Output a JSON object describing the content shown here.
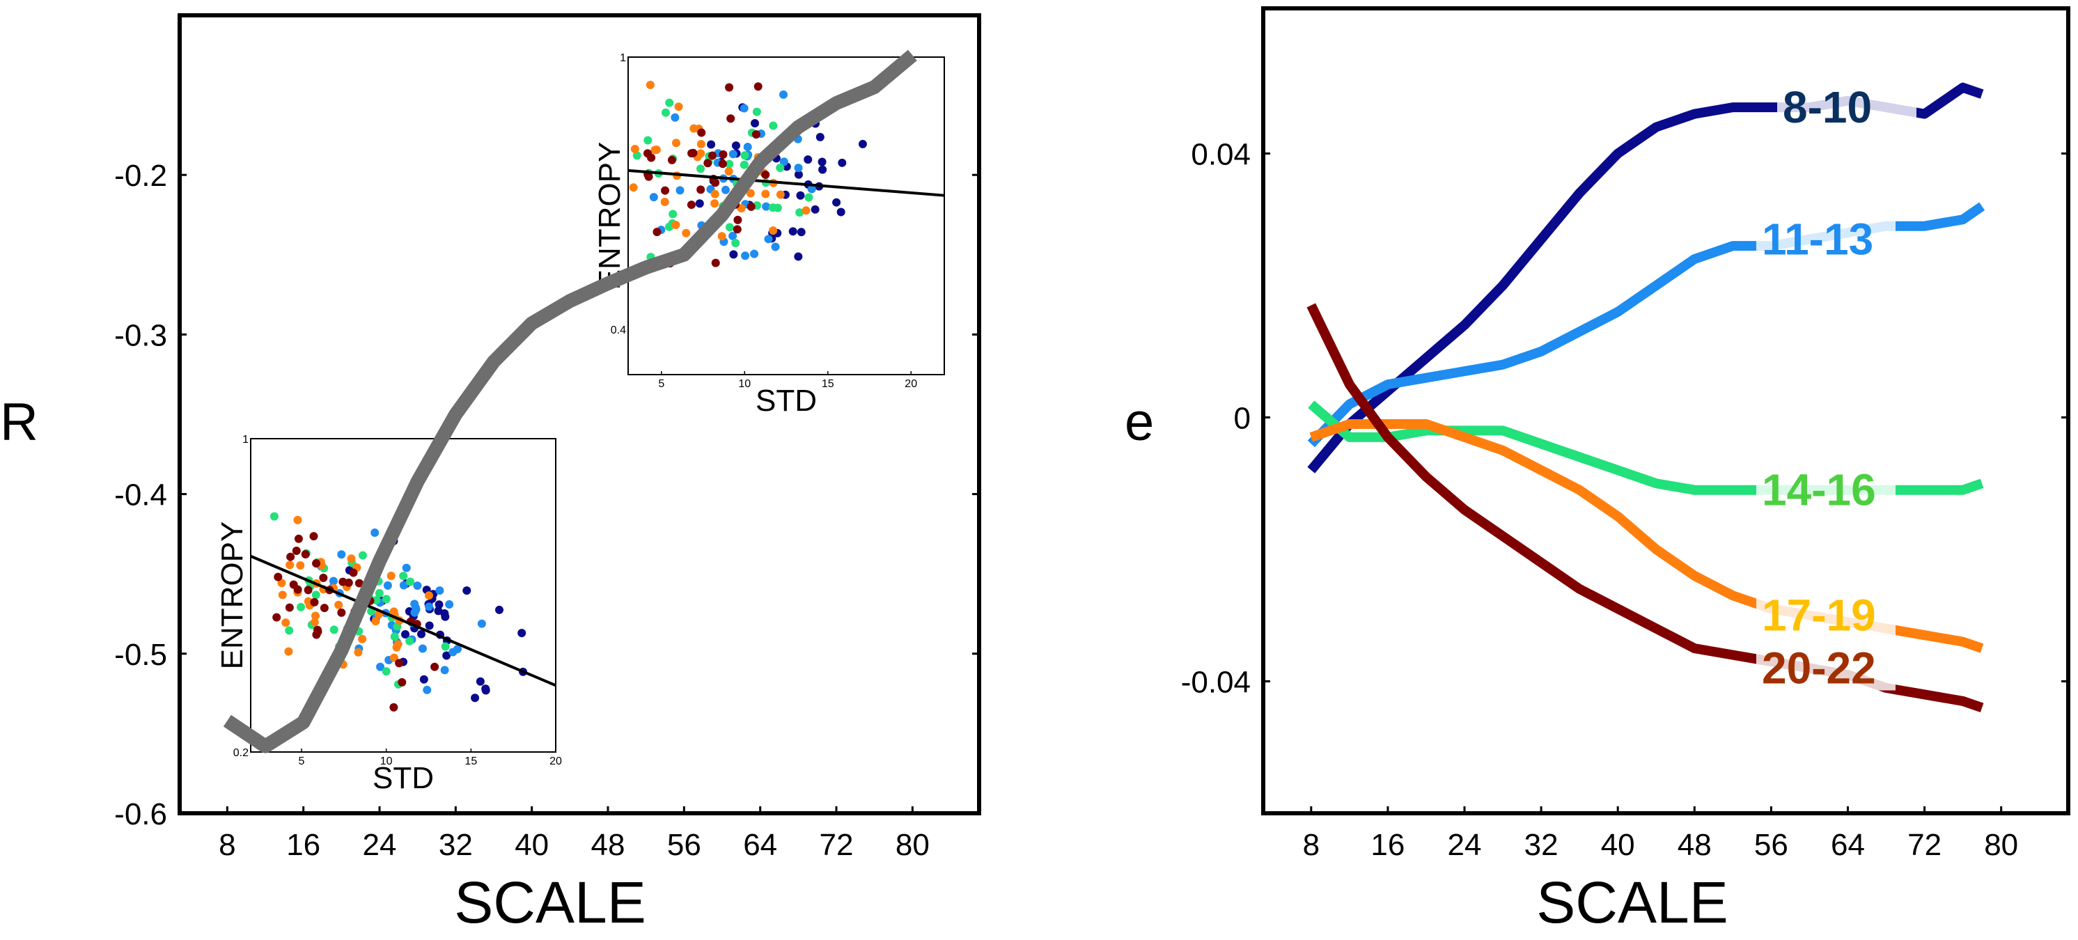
{
  "chart_data": [
    {
      "type": "line",
      "panel": "left",
      "xlabel": "SCALE",
      "ylabel": "R",
      "xticks": [
        "8",
        "16",
        "24",
        "32",
        "40",
        "48",
        "56",
        "64",
        "72",
        "80"
      ],
      "yticks": [
        "-0.6",
        "-0.5",
        "-0.4",
        "-0.3",
        "-0.2"
      ],
      "xlim": [
        3,
        87
      ],
      "ylim": [
        -0.6,
        -0.1
      ],
      "series": [
        {
          "name": "R",
          "color": "#6e6e6e",
          "x": [
            8,
            12,
            16,
            20,
            24,
            28,
            32,
            36,
            40,
            44,
            48,
            52,
            56,
            60,
            64,
            68,
            72,
            76,
            80
          ],
          "y": [
            -0.542,
            -0.558,
            -0.543,
            -0.498,
            -0.442,
            -0.392,
            -0.35,
            -0.317,
            -0.293,
            -0.279,
            -0.268,
            -0.258,
            -0.25,
            -0.225,
            -0.192,
            -0.17,
            -0.155,
            -0.145,
            -0.125
          ]
        }
      ],
      "insets": [
        {
          "name": "inset-top",
          "xlabel": "STD",
          "ylabel": "ENTROPY",
          "xticks": [
            "5",
            "10",
            "15",
            "20"
          ],
          "yticks": [
            "1",
            "0.4"
          ],
          "xlim": [
            3,
            22
          ],
          "ylim": [
            0.3,
            1.0
          ],
          "fit_line": [
            [
              3,
              0.75
            ],
            [
              22,
              0.695
            ]
          ]
        },
        {
          "name": "inset-bottom",
          "xlabel": "STD",
          "ylabel": "ENTROPY",
          "xticks": [
            "5",
            "10",
            "15",
            "20"
          ],
          "yticks": [
            "1",
            "0.2"
          ],
          "xlim": [
            2,
            20
          ],
          "ylim": [
            0.2,
            1.0
          ],
          "fit_line": [
            [
              2,
              0.7
            ],
            [
              20,
              0.37
            ]
          ]
        }
      ]
    },
    {
      "type": "line",
      "panel": "right",
      "xlabel": "SCALE",
      "ylabel": "e",
      "xticks": [
        "8",
        "16",
        "24",
        "32",
        "40",
        "48",
        "56",
        "64",
        "72",
        "80"
      ],
      "yticks": [
        "-0.04",
        "0",
        "0.04"
      ],
      "xlim": [
        3,
        87
      ],
      "ylim": [
        -0.06,
        0.062
      ],
      "series": [
        {
          "name": "8-10",
          "label": "8-10",
          "color": "#0a0a8c",
          "label_color": "#0a3060",
          "x": [
            8,
            12,
            16,
            20,
            24,
            28,
            32,
            36,
            40,
            44,
            48,
            52,
            56,
            60,
            64,
            68,
            72,
            76,
            78
          ],
          "y": [
            -0.008,
            -0.001,
            0.004,
            0.009,
            0.014,
            0.02,
            0.027,
            0.034,
            0.04,
            0.044,
            0.046,
            0.047,
            0.047,
            0.047,
            0.048,
            0.047,
            0.046,
            0.05,
            0.049
          ]
        },
        {
          "name": "11-13",
          "label": "11-13",
          "color": "#1e8cf0",
          "label_color": "#1e8cf0",
          "x": [
            8,
            12,
            16,
            20,
            24,
            28,
            32,
            36,
            40,
            44,
            48,
            52,
            56,
            60,
            64,
            68,
            72,
            76,
            78
          ],
          "y": [
            -0.004,
            0.002,
            0.005,
            0.006,
            0.007,
            0.008,
            0.01,
            0.013,
            0.016,
            0.02,
            0.024,
            0.026,
            0.026,
            0.027,
            0.028,
            0.029,
            0.029,
            0.03,
            0.032
          ]
        },
        {
          "name": "14-16",
          "label": "14-16",
          "color": "#22e07a",
          "label_color": "#4dd040",
          "x": [
            8,
            12,
            16,
            20,
            24,
            28,
            32,
            36,
            40,
            44,
            48,
            52,
            56,
            60,
            64,
            68,
            72,
            76,
            78
          ],
          "y": [
            0.002,
            -0.003,
            -0.003,
            -0.002,
            -0.002,
            -0.002,
            -0.004,
            -0.006,
            -0.008,
            -0.01,
            -0.011,
            -0.011,
            -0.011,
            -0.011,
            -0.011,
            -0.011,
            -0.011,
            -0.011,
            -0.01
          ]
        },
        {
          "name": "17-19",
          "label": "17-19",
          "color": "#ff7f0e",
          "label_color": "#ffc000",
          "x": [
            8,
            12,
            16,
            20,
            24,
            28,
            32,
            36,
            40,
            44,
            48,
            52,
            56,
            60,
            64,
            68,
            72,
            76,
            78
          ],
          "y": [
            -0.003,
            -0.001,
            -0.001,
            -0.001,
            -0.003,
            -0.005,
            -0.008,
            -0.011,
            -0.015,
            -0.02,
            -0.024,
            -0.027,
            -0.029,
            -0.03,
            -0.031,
            -0.032,
            -0.033,
            -0.034,
            -0.035
          ]
        },
        {
          "name": "20-22",
          "label": "20-22",
          "color": "#800000",
          "label_color": "#a03000",
          "x": [
            8,
            12,
            16,
            20,
            24,
            28,
            32,
            36,
            40,
            44,
            48,
            52,
            56,
            60,
            64,
            68,
            72,
            76,
            78
          ],
          "y": [
            0.017,
            0.005,
            -0.003,
            -0.009,
            -0.014,
            -0.018,
            -0.022,
            -0.026,
            -0.029,
            -0.032,
            -0.035,
            -0.036,
            -0.037,
            -0.038,
            -0.039,
            -0.041,
            -0.042,
            -0.043,
            -0.044
          ]
        }
      ]
    }
  ]
}
